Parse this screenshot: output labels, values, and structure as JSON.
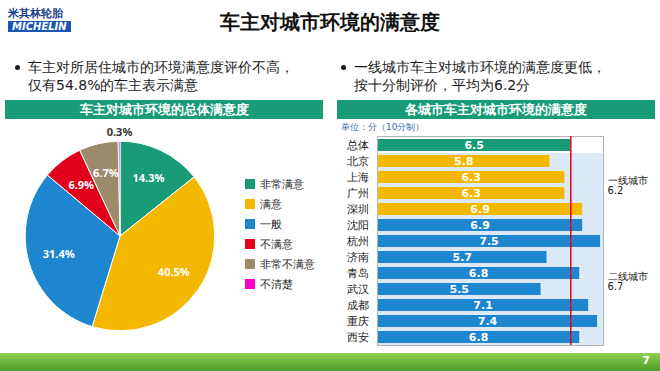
{
  "logo": [
    "米其林轮胎",
    "MICHELIN"
  ],
  "title": "车主对城市环境的满意度",
  "bullets": [
    [
      "车主对所居住城市的环境满意度评价不高，",
      "仅有54.8%的车主表示满意"
    ],
    [
      "一线城市车主对城市环境的满意度更低，",
      "按十分制评价，平均为6.2分"
    ]
  ],
  "page": "7",
  "chart_data": [
    {
      "type": "pie",
      "title": "车主对城市环境的总体满意度",
      "categories": [
        "非常满意",
        "满意",
        "一般",
        "不满意",
        "非常不满意",
        "不清楚"
      ],
      "values": [
        14.3,
        40.5,
        31.4,
        6.9,
        6.7,
        0.3
      ],
      "value_labels": [
        "14.3%",
        "40.5%",
        "31.4%",
        "6.9%",
        "6.7%",
        "0.3%"
      ],
      "colors": [
        "#1a9b78",
        "#f5b800",
        "#1e86cf",
        "#e3001b",
        "#9c8b6a",
        "#f400c8"
      ],
      "data_labels": true,
      "legend": "right"
    },
    {
      "type": "bar",
      "orientation": "horizontal",
      "title": "各城市车主对城市环境的满意度",
      "subtitle": "单位：分（10分制）",
      "categories": [
        "总体",
        "北京",
        "上海",
        "广州",
        "深圳",
        "沈阳",
        "杭州",
        "济南",
        "青岛",
        "武汉",
        "成都",
        "重庆",
        "西安"
      ],
      "values": [
        6.5,
        5.8,
        6.3,
        6.3,
        6.9,
        6.9,
        7.5,
        5.7,
        6.8,
        5.5,
        7.1,
        7.4,
        6.8
      ],
      "colors": [
        "#1a9b78",
        "#f5b800",
        "#f5b800",
        "#f5b800",
        "#f5b800",
        "#1e86cf",
        "#1e86cf",
        "#1e86cf",
        "#1e86cf",
        "#1e86cf",
        "#1e86cf",
        "#1e86cf",
        "#1e86cf"
      ],
      "data_labels": true,
      "tick_labels": "y",
      "xlim": [
        0,
        7.6
      ],
      "xticks": [],
      "reference_line": 6.5,
      "groups": [
        {
          "name": "一线城市",
          "value": 6.2,
          "categories": [
            "北京",
            "上海",
            "广州",
            "深圳"
          ]
        },
        {
          "name": "二线城市",
          "value": 6.7,
          "categories": [
            "沈阳",
            "杭州",
            "济南",
            "青岛",
            "武汉",
            "成都",
            "重庆",
            "西安"
          ]
        }
      ]
    }
  ]
}
